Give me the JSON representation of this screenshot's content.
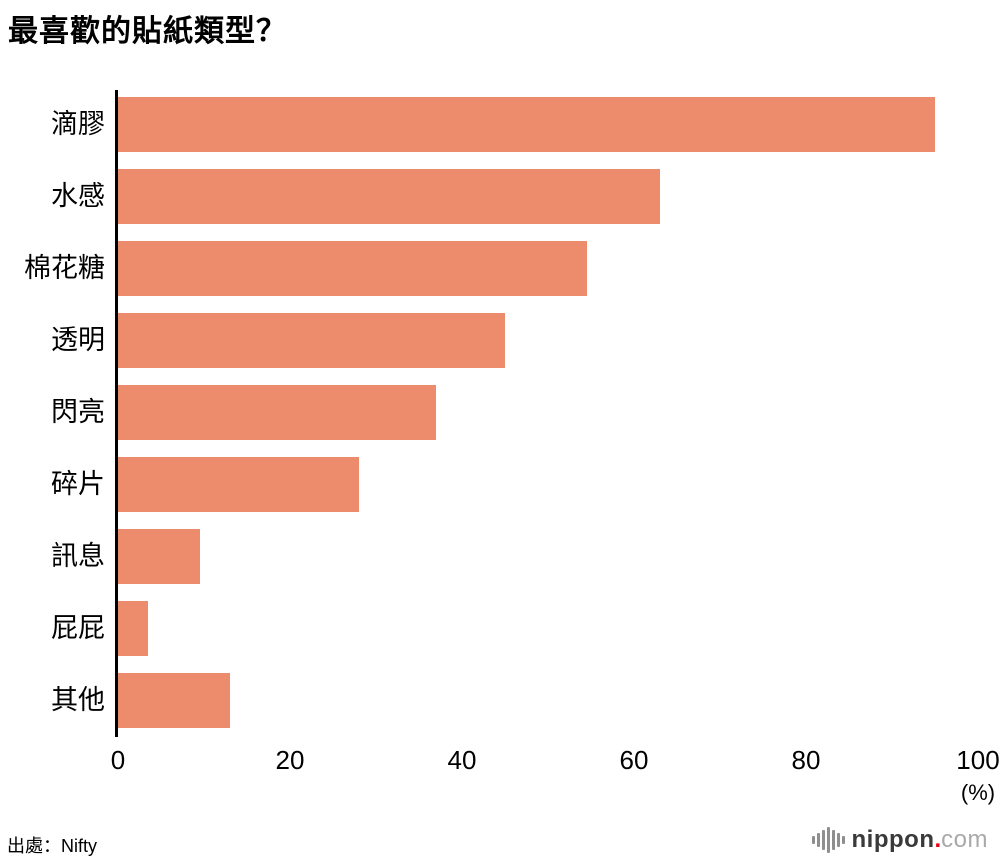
{
  "title": "最喜歡的貼紙類型？",
  "chart_data": {
    "type": "bar",
    "orientation": "horizontal",
    "title": "最喜歡的貼紙類型？",
    "categories": [
      "滴膠",
      "水感",
      "棉花糖",
      "透明",
      "閃亮",
      "碎片",
      "訊息",
      "屁屁",
      "其他"
    ],
    "values": [
      95,
      63,
      54.5,
      45,
      37,
      28,
      9.5,
      3.5,
      13
    ],
    "xlim": [
      0,
      100
    ],
    "x_ticks": [
      0,
      20,
      40,
      60,
      80,
      100
    ],
    "x_unit_label": "(%)",
    "bar_color": "#ed8b6d",
    "grid": false,
    "legend": false
  },
  "footer": {
    "source": "出處：Nifty",
    "logo": {
      "icon": "nippon-soundwave-icon",
      "brand_name": "nippon",
      "dot": ".",
      "dot_color": "#e60012",
      "tld": "com"
    }
  }
}
